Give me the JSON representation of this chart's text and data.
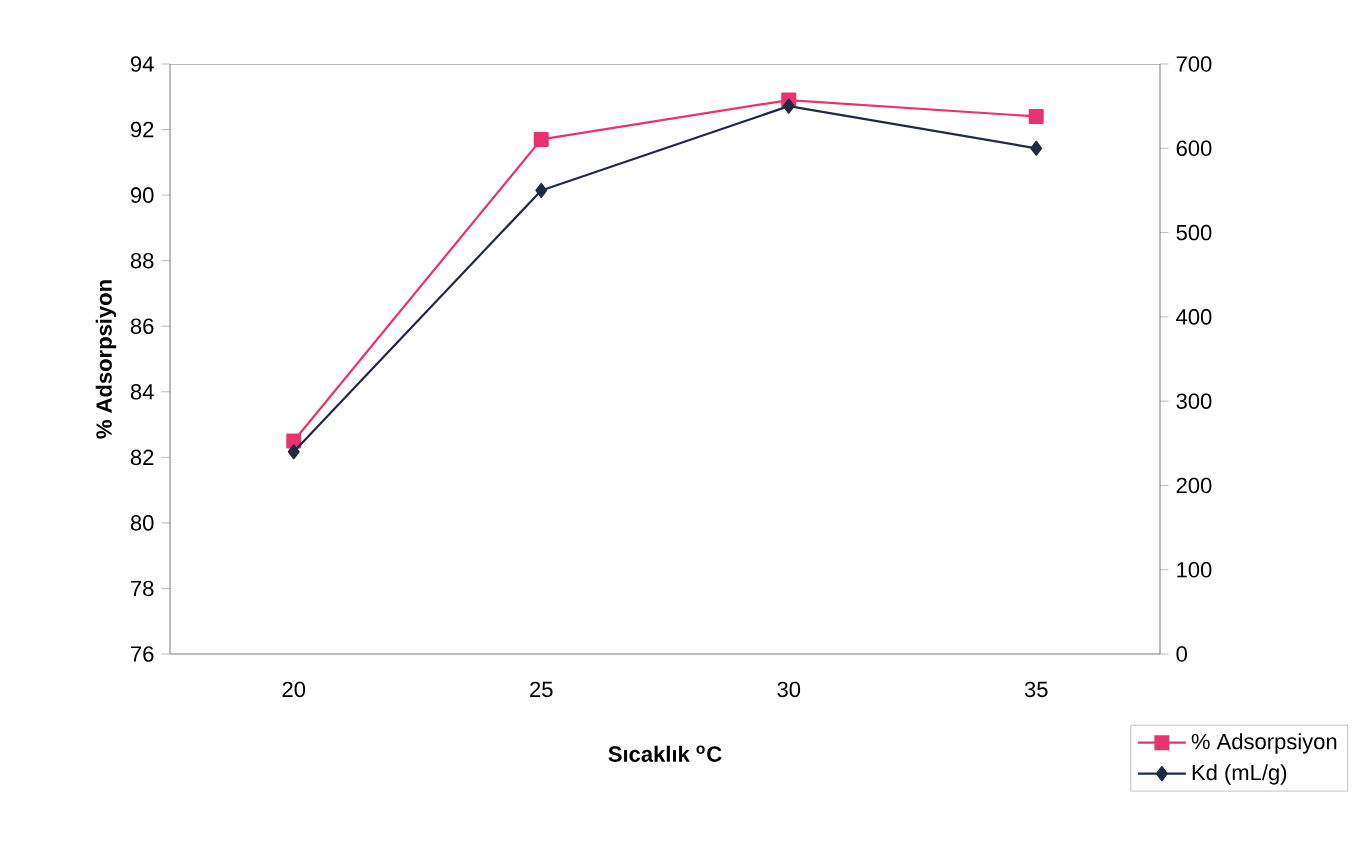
{
  "chart_data": {
    "type": "line",
    "xlabel": "Sıcaklık $^{o}$C",
    "ylabel": "% Adsorpsiyon",
    "categories": [
      "20",
      "25",
      "30",
      "35"
    ],
    "series": [
      {
        "name": "% Adsorpsiyon",
        "color": "#e8336e",
        "marker": "square",
        "values": [
          82.5,
          91.7,
          92.9,
          92.4
        ]
      },
      {
        "name": "Kd (mL/g)",
        "color": "#1f2a44",
        "marker": "diamond",
        "axis": "y2",
        "values": [
          240,
          550,
          650,
          600
        ]
      }
    ],
    "ylim": [
      76,
      94
    ],
    "yticks": [
      76,
      78,
      80,
      82,
      84,
      86,
      88,
      90,
      92,
      94
    ],
    "y2lim": [
      0,
      700
    ],
    "y2ticks": [
      0,
      100,
      200,
      300,
      400,
      500,
      600,
      700
    ],
    "legend": "bottom right",
    "grid": false,
    "line_style": "solid"
  }
}
